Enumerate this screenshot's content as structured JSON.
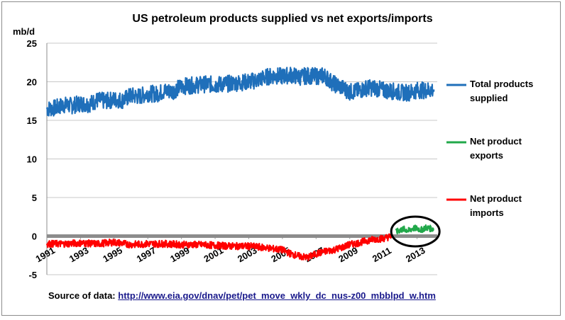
{
  "chart_data": {
    "type": "line",
    "title": "US petroleum products supplied vs net exports/imports",
    "ylabel": "mb/d",
    "xlabel": "",
    "ylim": [
      -5,
      25
    ],
    "yticks": [
      -5,
      0,
      5,
      10,
      15,
      20,
      25
    ],
    "xlim": [
      1991,
      2014.2
    ],
    "xticks": [
      "1991",
      "1993",
      "1995",
      "1997",
      "1999",
      "2001",
      "2003",
      "2005",
      "2007",
      "2009",
      "2011",
      "2013"
    ],
    "grid": "horizontal",
    "legend_placement": "right",
    "colors": {
      "total": "#1f6fba",
      "exports": "#21a84a",
      "imports": "#ff0000",
      "zero": "#8c8c8c",
      "highlight": "#000000"
    },
    "series": [
      {
        "name": "Total products supplied",
        "color": "#1f6fba",
        "x": [
          1991,
          1991.5,
          1992,
          1992.5,
          1993,
          1993.5,
          1994,
          1994.5,
          1995,
          1995.5,
          1996,
          1996.5,
          1997,
          1997.5,
          1998,
          1998.5,
          1999,
          1999.5,
          2000,
          2000.5,
          2001,
          2001.5,
          2002,
          2002.5,
          2003,
          2003.5,
          2004,
          2004.5,
          2005,
          2005.5,
          2006,
          2006.5,
          2007,
          2007.5,
          2008,
          2008.5,
          2009,
          2009.5,
          2010,
          2010.5,
          2011,
          2011.5,
          2012,
          2012.5,
          2013,
          2013.5,
          2014
        ],
        "y": [
          16.5,
          16.6,
          17.0,
          16.9,
          17.2,
          17.1,
          17.6,
          17.5,
          17.7,
          17.6,
          18.2,
          18.1,
          18.5,
          18.4,
          18.8,
          18.8,
          19.4,
          19.5,
          19.6,
          19.7,
          19.6,
          19.7,
          19.8,
          19.9,
          20.0,
          20.2,
          20.6,
          20.8,
          20.7,
          20.9,
          20.6,
          20.8,
          20.7,
          20.8,
          19.8,
          19.3,
          18.7,
          18.8,
          19.2,
          19.2,
          18.9,
          18.8,
          18.6,
          18.6,
          18.9,
          18.9,
          19.0
        ]
      },
      {
        "name": "Net product exports",
        "color": "#21a84a",
        "x": [
          2011.75,
          2012,
          2012.25,
          2012.5,
          2012.75,
          2013,
          2013.25,
          2013.5,
          2013.75,
          2014
        ],
        "y": [
          0.5,
          0.8,
          0.9,
          0.7,
          1.0,
          1.0,
          0.8,
          1.1,
          1.0,
          0.9
        ]
      },
      {
        "name": "Net product imports",
        "color": "#ff0000",
        "x": [
          1991,
          1992,
          1993,
          1994,
          1995,
          1996,
          1997,
          1998,
          1999,
          2000,
          2001,
          2002,
          2003,
          2004,
          2005,
          2005.5,
          2006,
          2006.5,
          2007,
          2007.5,
          2008,
          2008.5,
          2009,
          2009.5,
          2010,
          2010.5,
          2011,
          2011.5
        ],
        "y": [
          -1.0,
          -1.0,
          -0.9,
          -1.0,
          -0.8,
          -1.1,
          -1.0,
          -1.0,
          -1.1,
          -1.1,
          -1.2,
          -1.3,
          -1.3,
          -1.5,
          -1.8,
          -2.3,
          -2.6,
          -2.8,
          -2.3,
          -2.0,
          -1.8,
          -1.5,
          -1.1,
          -0.9,
          -0.6,
          -0.4,
          -0.3,
          0.0
        ]
      }
    ],
    "legend": [
      {
        "line1": "Total products",
        "line2": "supplied",
        "color": "#1f6fba"
      },
      {
        "line1": "Net product",
        "line2": "exports",
        "color": "#21a84a"
      },
      {
        "line1": "Net product",
        "line2": "imports",
        "color": "#ff0000"
      }
    ]
  },
  "source": {
    "label": "Source of data: ",
    "url_text": "http://www.eia.gov/dnav/pet/pet_move_wkly_dc_nus-z00_mbblpd_w.htm"
  }
}
